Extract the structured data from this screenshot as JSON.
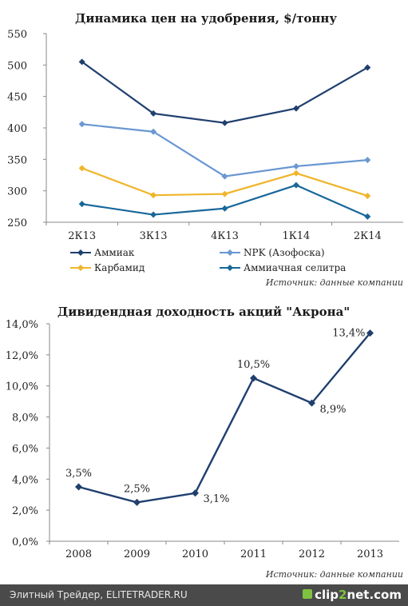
{
  "chart_data": [
    {
      "type": "line",
      "title": "Динамика цен на удобрения, $/тонну",
      "categories": [
        "2К13",
        "3К13",
        "4К13",
        "1К14",
        "2К14"
      ],
      "ylim": [
        250,
        550
      ],
      "yticks": [
        "550",
        "500",
        "450",
        "400",
        "350",
        "300",
        "250"
      ],
      "ytick_values": [
        550,
        500,
        450,
        400,
        350,
        300,
        250
      ],
      "grid": false,
      "legend_position": "bottom",
      "series": [
        {
          "name": "Аммиак",
          "values": [
            505,
            423,
            408,
            431,
            496
          ],
          "color": "#1f3f6e"
        },
        {
          "name": "NPK (Азофоска)",
          "values": [
            406,
            394,
            323,
            339,
            349
          ],
          "color": "#6a98d2"
        },
        {
          "name": "Карбамид",
          "values": [
            336,
            293,
            295,
            328,
            292
          ],
          "color": "#f0b52a"
        },
        {
          "name": "Аммиачная селитра",
          "values": [
            279,
            262,
            272,
            309,
            259
          ],
          "color": "#17679a"
        }
      ],
      "source": "Источник: данные компании"
    },
    {
      "type": "line",
      "title": "Дивидендная доходность акций \"Акрона\"",
      "categories": [
        "2008",
        "2009",
        "2010",
        "2011",
        "2012",
        "2013"
      ],
      "ylim": [
        0,
        14
      ],
      "yticks": [
        "14,0%",
        "12,0%",
        "10,0%",
        "8,0%",
        "6,0%",
        "4,0%",
        "2,0%",
        "0,0%"
      ],
      "ytick_values": [
        14,
        12,
        10,
        8,
        6,
        4,
        2,
        0
      ],
      "grid": false,
      "series": [
        {
          "values": [
            3.5,
            2.5,
            3.1,
            10.5,
            8.9,
            13.4
          ],
          "color": "#1f3f6e"
        }
      ],
      "data_labels": [
        "3,5%",
        "2,5%",
        "3,1%",
        "10,5%",
        "8,9%",
        "13,4%"
      ],
      "source": "Источник: данные компании"
    }
  ],
  "footer": {
    "text": "Элитный Трейдер, ELITETRADER.RU",
    "logo_left": "clip",
    "logo_accent": "2",
    "logo_right": "net.com"
  }
}
